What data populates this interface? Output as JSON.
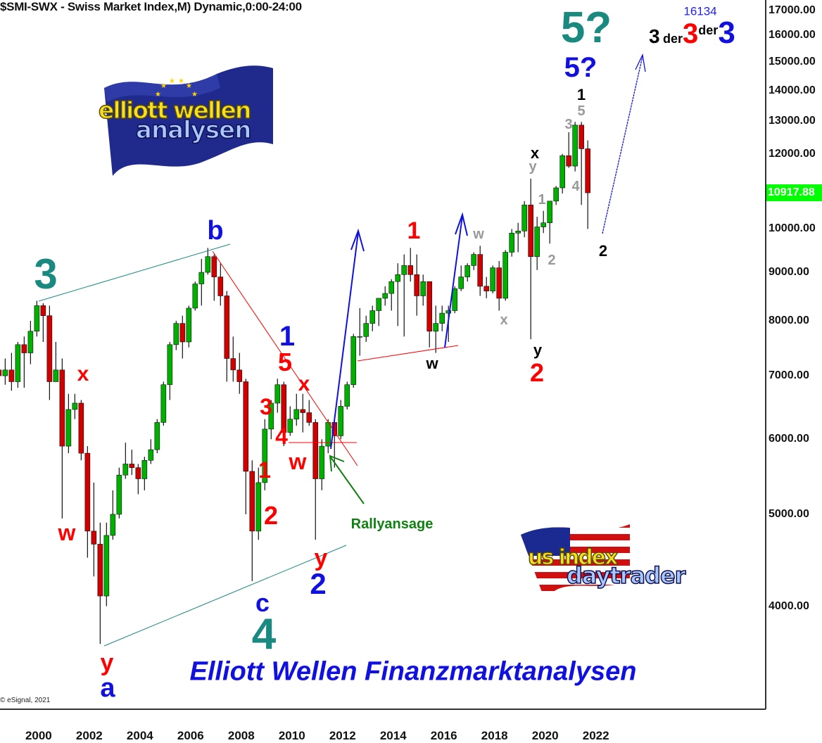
{
  "header": {
    "title": "$SMI-SWX - Swiss Market Index,M) Dynamic,0:00-24:00"
  },
  "copyright": "© eSignal, 2021",
  "last_price_label": "10917.88",
  "colors": {
    "up": "#00b000",
    "down": "#d00000",
    "wick": "#111111",
    "last_price_bg": "#00ff00",
    "teal": "#1a8a80",
    "blue": "#1010e0",
    "red": "#ff0000",
    "gray": "#999999",
    "green": "#108010"
  },
  "logos": {
    "eu": {
      "line1": "elliott wellen",
      "line2": "analysen"
    },
    "us": {
      "line1": "us index",
      "line2": "daytrader"
    }
  },
  "footer_text": "Elliott Wellen Finanzmarktanalysen",
  "target": {
    "value": "16134",
    "label_parts": [
      "3",
      "der",
      "3",
      "der",
      "3"
    ]
  },
  "annotations": [
    {
      "text": "3",
      "color": "teal"
    },
    {
      "text": "x",
      "color": "red"
    },
    {
      "text": "w",
      "color": "red"
    },
    {
      "text": "y",
      "color": "red"
    },
    {
      "text": "a",
      "color": "blue"
    },
    {
      "text": "b",
      "color": "blue"
    },
    {
      "text": "c",
      "color": "blue"
    },
    {
      "text": "4",
      "color": "teal"
    },
    {
      "text": "1",
      "color": "blue"
    },
    {
      "text": "5",
      "color": "red"
    },
    {
      "text": "x",
      "color": "red"
    },
    {
      "text": "3",
      "color": "red"
    },
    {
      "text": "4",
      "color": "red"
    },
    {
      "text": "1",
      "color": "red"
    },
    {
      "text": "2",
      "color": "red"
    },
    {
      "text": "w",
      "color": "red"
    },
    {
      "text": "y",
      "color": "red"
    },
    {
      "text": "2",
      "color": "blue"
    },
    {
      "text": "Rallyansage",
      "color": "green"
    },
    {
      "text": "1",
      "color": "red"
    },
    {
      "text": "w",
      "color": "black"
    },
    {
      "text": "w",
      "color": "gray"
    },
    {
      "text": "x",
      "color": "gray"
    },
    {
      "text": "x",
      "color": "black"
    },
    {
      "text": "y",
      "color": "gray"
    },
    {
      "text": "1",
      "color": "gray"
    },
    {
      "text": "2",
      "color": "gray"
    },
    {
      "text": "y",
      "color": "black"
    },
    {
      "text": "2",
      "color": "red"
    },
    {
      "text": "4",
      "color": "gray"
    },
    {
      "text": "3",
      "color": "gray"
    },
    {
      "text": "5",
      "color": "gray"
    },
    {
      "text": "1",
      "color": "black"
    },
    {
      "text": "2",
      "color": "black"
    },
    {
      "text": "5?",
      "color": "teal"
    },
    {
      "text": "5?",
      "color": "blue"
    }
  ],
  "chart_data": {
    "type": "candlestick",
    "title": "$SMI-SWX - Swiss Market Index,M) Dynamic,0:00-24:00",
    "y_scale": "log",
    "ylim": [
      3130,
      17440
    ],
    "xlim": [
      1999.17,
      2029.4
    ],
    "grid": false,
    "y_ticks": [
      "4000.00",
      "5000.00",
      "6000.00",
      "7000.00",
      "8000.00",
      "9000.00",
      "10000.00",
      "11000.00",
      "12000.00",
      "13000.00",
      "14000.00",
      "15000.00",
      "16000.00",
      "17000.00"
    ],
    "x_ticks": [
      "2000",
      "2002",
      "2004",
      "2006",
      "2008",
      "2010",
      "2012",
      "2014",
      "2016",
      "2018",
      "2020",
      "2022"
    ],
    "last_price": 10917.88,
    "candles_columns": [
      "period",
      "open",
      "high",
      "low",
      "close"
    ],
    "candles": [
      [
        "1999-Q1",
        7100,
        7450,
        6900,
        7000
      ],
      [
        "1999-Q2",
        7000,
        7300,
        6850,
        7100
      ],
      [
        "1999-Q3",
        7100,
        7400,
        6750,
        6900
      ],
      [
        "1999-Q4",
        6900,
        7600,
        6800,
        7550
      ],
      [
        "2000-Q1",
        7550,
        7700,
        6800,
        7400
      ],
      [
        "2000-Q2",
        7400,
        8000,
        7200,
        7800
      ],
      [
        "2000-Q3",
        7800,
        8400,
        7700,
        8300
      ],
      [
        "2000-Q4",
        8300,
        8350,
        7600,
        8100
      ],
      [
        "2001-Q1",
        8100,
        8300,
        6600,
        6900
      ],
      [
        "2001-Q2",
        6900,
        7600,
        6900,
        7100
      ],
      [
        "2001-Q3",
        7100,
        7300,
        4950,
        5900
      ],
      [
        "2001-Q4",
        5900,
        6700,
        5800,
        6450
      ],
      [
        "2002-Q1",
        6450,
        6700,
        6300,
        6550
      ],
      [
        "2002-Q2",
        6550,
        6600,
        5700,
        5800
      ],
      [
        "2002-Q3",
        5800,
        5900,
        4500,
        4800
      ],
      [
        "2002-Q4",
        4800,
        5400,
        4300,
        4650
      ],
      [
        "2003-Q1",
        4650,
        4900,
        3650,
        4100
      ],
      [
        "2003-Q2",
        4100,
        4900,
        4000,
        4750
      ],
      [
        "2003-Q3",
        4750,
        5300,
        4700,
        5000
      ],
      [
        "2003-Q4",
        5000,
        5600,
        4950,
        5500
      ],
      [
        "2004-Q1",
        5500,
        5950,
        5450,
        5650
      ],
      [
        "2004-Q2",
        5650,
        5850,
        5500,
        5600
      ],
      [
        "2004-Q3",
        5600,
        5650,
        5250,
        5450
      ],
      [
        "2004-Q4",
        5450,
        5750,
        5300,
        5700
      ],
      [
        "2005-Q1",
        5700,
        6000,
        5650,
        5850
      ],
      [
        "2005-Q2",
        5850,
        6300,
        5800,
        6250
      ],
      [
        "2005-Q3",
        6250,
        6900,
        6200,
        6850
      ],
      [
        "2005-Q4",
        6850,
        7600,
        6600,
        7550
      ],
      [
        "2006-Q1",
        7550,
        8000,
        7450,
        7950
      ],
      [
        "2006-Q2",
        7950,
        8100,
        7300,
        7600
      ],
      [
        "2006-Q3",
        7600,
        8300,
        7500,
        8250
      ],
      [
        "2006-Q4",
        8250,
        8800,
        8200,
        8750
      ],
      [
        "2007-Q1",
        8750,
        9300,
        8300,
        9000
      ],
      [
        "2007-Q2",
        9000,
        9550,
        8950,
        9350
      ],
      [
        "2007-Q3",
        9350,
        9400,
        8400,
        8900
      ],
      [
        "2007-Q4",
        8900,
        9200,
        8300,
        8500
      ],
      [
        "2008-Q1",
        8500,
        8600,
        6900,
        7300
      ],
      [
        "2008-Q2",
        7300,
        7700,
        6900,
        7100
      ],
      [
        "2008-Q3",
        7100,
        7400,
        6700,
        6900
      ],
      [
        "2008-Q4",
        6900,
        6950,
        5000,
        5550
      ],
      [
        "2009-Q1",
        5550,
        5700,
        4250,
        4800
      ],
      [
        "2009-Q2",
        4800,
        5600,
        4700,
        5400
      ],
      [
        "2009-Q3",
        5400,
        6300,
        5300,
        6150
      ],
      [
        "2009-Q4",
        6150,
        6600,
        6000,
        6550
      ],
      [
        "2010-Q1",
        6550,
        6950,
        6400,
        6850
      ],
      [
        "2010-Q2",
        6850,
        6900,
        5900,
        6100
      ],
      [
        "2010-Q3",
        6100,
        6500,
        6050,
        6300
      ],
      [
        "2010-Q4",
        6300,
        6700,
        6200,
        6450
      ],
      [
        "2011-Q1",
        6450,
        6700,
        6100,
        6400
      ],
      [
        "2011-Q2",
        6400,
        6600,
        6200,
        6250
      ],
      [
        "2011-Q3",
        6250,
        6300,
        4700,
        5450
      ],
      [
        "2011-Q4",
        5450,
        6000,
        5300,
        5900
      ],
      [
        "2012-Q1",
        5900,
        6300,
        5800,
        6250
      ],
      [
        "2012-Q2",
        6250,
        6300,
        5600,
        6050
      ],
      [
        "2012-Q3",
        6050,
        6600,
        6000,
        6500
      ],
      [
        "2012-Q4",
        6500,
        6900,
        6450,
        6850
      ],
      [
        "2013-Q1",
        6850,
        7750,
        6800,
        7700
      ],
      [
        "2013-Q2",
        7700,
        8250,
        7350,
        7700
      ],
      [
        "2013-Q3",
        7700,
        8100,
        7600,
        7950
      ],
      [
        "2013-Q4",
        7950,
        8300,
        7800,
        8200
      ],
      [
        "2014-Q1",
        8200,
        8450,
        7900,
        8450
      ],
      [
        "2014-Q2",
        8450,
        8700,
        8300,
        8550
      ],
      [
        "2014-Q3",
        8550,
        8850,
        8200,
        8800
      ],
      [
        "2014-Q4",
        8800,
        9200,
        7900,
        8950
      ],
      [
        "2015-Q1",
        8950,
        9400,
        7700,
        9150
      ],
      [
        "2015-Q2",
        9150,
        9550,
        8800,
        8950
      ],
      [
        "2015-Q3",
        8950,
        9400,
        8100,
        8500
      ],
      [
        "2015-Q4",
        8500,
        8950,
        8300,
        8800
      ],
      [
        "2016-Q1",
        8800,
        8800,
        7500,
        7800
      ],
      [
        "2016-Q2",
        7800,
        8300,
        7400,
        7950
      ],
      [
        "2016-Q3",
        7950,
        8300,
        7800,
        8150
      ],
      [
        "2016-Q4",
        8150,
        8300,
        7600,
        8200
      ],
      [
        "2017-Q1",
        8200,
        8700,
        8150,
        8650
      ],
      [
        "2017-Q2",
        8650,
        9150,
        8600,
        8900
      ],
      [
        "2017-Q3",
        8900,
        9200,
        8800,
        9150
      ],
      [
        "2017-Q4",
        9150,
        9450,
        9050,
        9400
      ],
      [
        "2018-Q1",
        9400,
        9600,
        8500,
        8700
      ],
      [
        "2018-Q2",
        8700,
        8900,
        8450,
        8600
      ],
      [
        "2018-Q3",
        8600,
        9150,
        8550,
        9100
      ],
      [
        "2018-Q4",
        9100,
        9250,
        8200,
        8450
      ],
      [
        "2019-Q1",
        8450,
        9500,
        8400,
        9450
      ],
      [
        "2019-Q2",
        9450,
        10000,
        9350,
        9900
      ],
      [
        "2019-Q3",
        9900,
        10150,
        9450,
        9950
      ],
      [
        "2019-Q4",
        9950,
        10700,
        9800,
        10600
      ],
      [
        "2020-Q1",
        10600,
        11300,
        7650,
        9350
      ],
      [
        "2020-Q2",
        9350,
        10300,
        9050,
        10050
      ],
      [
        "2020-Q3",
        10050,
        10450,
        9900,
        10150
      ],
      [
        "2020-Q4",
        10150,
        10700,
        9650,
        10700
      ],
      [
        "2021-Q1",
        10700,
        11100,
        10600,
        11050
      ],
      [
        "2021-Q2",
        11050,
        12000,
        10900,
        11950
      ],
      [
        "2021-Q3",
        11950,
        12650,
        11600,
        11650
      ],
      [
        "2021-Q4",
        11650,
        12970,
        11500,
        12870
      ],
      [
        "2022-Q1",
        12870,
        12970,
        10600,
        12150
      ],
      [
        "2022-Q2",
        12150,
        12400,
        10000,
        10917.88
      ]
    ]
  }
}
